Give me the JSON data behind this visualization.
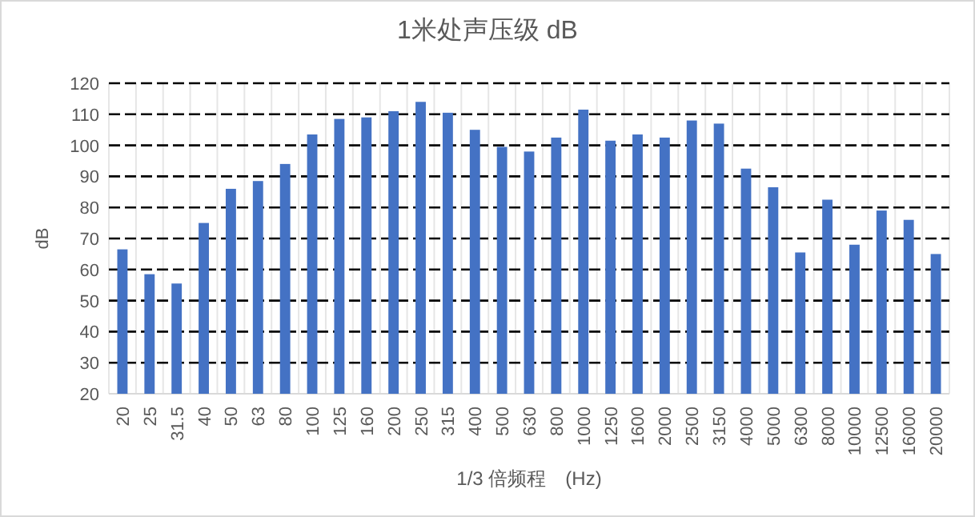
{
  "chart_data": {
    "type": "bar",
    "title": "1米处声压级 dB",
    "xlabel": "1/3 倍频程　(Hz)",
    "ylabel": "dB",
    "categories": [
      "20",
      "25",
      "31.5",
      "40",
      "50",
      "63",
      "80",
      "100",
      "125",
      "160",
      "200",
      "250",
      "315",
      "400",
      "500",
      "630",
      "800",
      "1000",
      "1250",
      "1600",
      "2000",
      "2500",
      "3150",
      "4000",
      "5000",
      "6300",
      "8000",
      "10000",
      "12500",
      "16000",
      "20000"
    ],
    "values": [
      66.5,
      58.5,
      55.5,
      75,
      86,
      88.5,
      94,
      103.5,
      108.5,
      109,
      111,
      114,
      110.5,
      105,
      99.5,
      98,
      102.5,
      111.5,
      101.5,
      103.5,
      102.5,
      108,
      107,
      92.5,
      86.5,
      65.5,
      82.5,
      68,
      79,
      76,
      65
    ],
    "color": "#4472c4",
    "ylim": [
      20,
      120
    ],
    "yticks": [
      20,
      30,
      40,
      50,
      60,
      70,
      80,
      90,
      100,
      110,
      120
    ],
    "grid": true
  }
}
